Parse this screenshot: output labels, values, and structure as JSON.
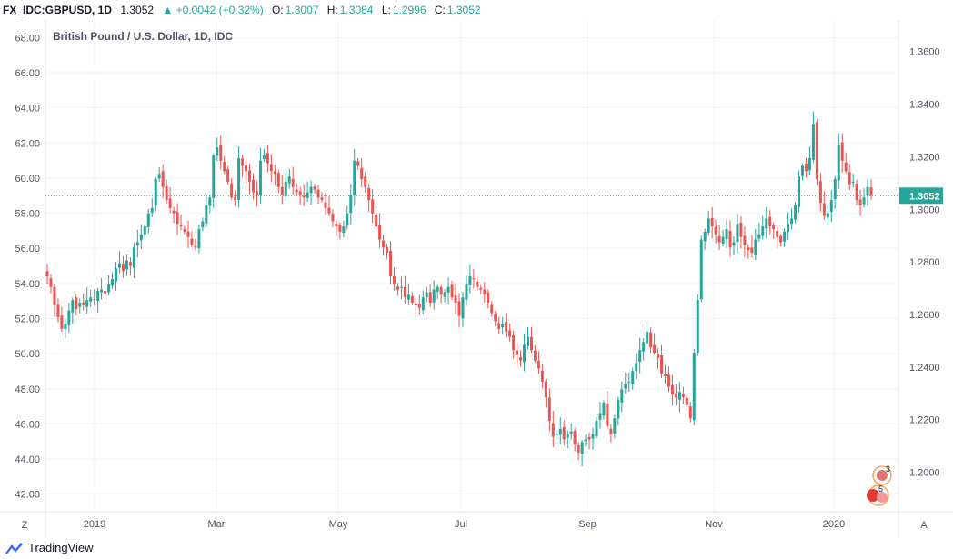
{
  "header": {
    "symbol": "FX_IDC:GBPUSD, 1D",
    "last": "1.3052",
    "change": "▲ +0.0042 (+0.32%)",
    "open_label": "O:",
    "open": "1.3007",
    "high_label": "H:",
    "high": "1.3084",
    "low_label": "L:",
    "low": "1.2996",
    "close_label": "C:",
    "close": "1.3052"
  },
  "legend": {
    "title": "British Pound / U.S. Dollar, 1D, IDC"
  },
  "axis_buttons": {
    "left": "Z",
    "right": "A"
  },
  "event_badges": [
    {
      "count": "3"
    },
    {
      "count": "5"
    }
  ],
  "footer": {
    "brand": "TradingView"
  },
  "colors": {
    "up": "#26a69a",
    "down": "#ef5350",
    "price_line": "#26a69a",
    "grid": "#f0f3fa"
  },
  "chart_data": {
    "type": "candlestick",
    "title": "British Pound / U.S. Dollar, 1D, IDC",
    "left_axis": {
      "ticks": [
        "42.00",
        "44.00",
        "46.00",
        "48.00",
        "50.00",
        "52.00",
        "54.00",
        "56.00",
        "58.00",
        "60.00",
        "62.00",
        "64.00",
        "66.00",
        "68.00"
      ],
      "ylim": [
        41,
        69
      ]
    },
    "right_axis": {
      "ticks": [
        "1.2000",
        "1.2200",
        "1.2400",
        "1.2600",
        "1.2800",
        "1.3000",
        "1.3200",
        "1.3400",
        "1.3600"
      ],
      "ylim": [
        1.185,
        1.372
      ]
    },
    "time_ticks": [
      "2019",
      "Mar",
      "May",
      "Jul",
      "Sep",
      "Nov",
      "2020"
    ],
    "price_line": {
      "value": 1.3052,
      "label": "1.3052"
    },
    "grid": true,
    "close_series": [
      1.2745,
      1.2705,
      1.2635,
      1.259,
      1.2545,
      1.2565,
      1.2615,
      1.2655,
      1.262,
      1.2645,
      1.2635,
      1.2655,
      1.2665,
      1.2655,
      1.269,
      1.2695,
      1.268,
      1.2715,
      1.2735,
      1.2775,
      1.2795,
      1.2765,
      1.2805,
      1.2785,
      1.2855,
      1.2875,
      1.2905,
      1.2935,
      1.2985,
      1.3005,
      1.3115,
      1.3135,
      1.3085,
      1.3035,
      1.3005,
      1.2985,
      1.2945,
      1.2935,
      1.2915,
      1.2895,
      1.2865,
      1.2855,
      1.2925,
      1.2955,
      1.3015,
      1.3045,
      1.3205,
      1.3235,
      1.3185,
      1.3145,
      1.3105,
      1.3045,
      1.3035,
      1.3195,
      1.3165,
      1.3145,
      1.3105,
      1.3065,
      1.3055,
      1.3185,
      1.3205,
      1.3175,
      1.3145,
      1.3135,
      1.3085,
      1.3055,
      1.3105,
      1.3125,
      1.3085,
      1.3065,
      1.3055,
      1.3045,
      1.3065,
      1.3085,
      1.3075,
      1.3045,
      1.3035,
      1.3005,
      1.2985,
      1.2955,
      1.2935,
      1.2915,
      1.2935,
      1.2985,
      1.3055,
      1.3185,
      1.3165,
      1.3115,
      1.3085,
      1.3035,
      1.2985,
      1.2935,
      1.2885,
      1.2855,
      1.2835,
      1.2745,
      1.2715,
      1.2695,
      1.2705,
      1.2665,
      1.2675,
      1.2645,
      1.2635,
      1.2625,
      1.2665,
      1.2685,
      1.2645,
      1.2695,
      1.2705,
      1.2675,
      1.2685,
      1.2705,
      1.2665,
      1.2645,
      1.2595,
      1.2665,
      1.2715,
      1.2745,
      1.2735,
      1.2705,
      1.2695,
      1.2675,
      1.2645,
      1.2605,
      1.2575,
      1.2545,
      1.2565,
      1.2535,
      1.2515,
      1.2465,
      1.2445,
      1.2425,
      1.2485,
      1.2515,
      1.2465,
      1.2425,
      1.2395,
      1.2345,
      1.2285,
      1.2195,
      1.2135,
      1.2145,
      1.2165,
      1.2125,
      1.2145,
      1.2155,
      1.2105,
      1.2075,
      1.2115,
      1.2125,
      1.2125,
      1.2145,
      1.2195,
      1.2225,
      1.2265,
      1.2175,
      1.2145,
      1.2205,
      1.2275,
      1.2315,
      1.2335,
      1.2345,
      1.2385,
      1.2415,
      1.2465,
      1.2495,
      1.2535,
      1.2475,
      1.2455,
      1.2435,
      1.2375,
      1.2365,
      1.2325,
      1.2295,
      1.2285,
      1.2305,
      1.2285,
      1.2255,
      1.2205,
      1.2455,
      1.2655,
      1.2885,
      1.2915,
      1.2965,
      1.2935,
      1.2905,
      1.2875,
      1.2895,
      1.2925,
      1.2855,
      1.2875,
      1.2945,
      1.2895,
      1.2865,
      1.2845,
      1.2835,
      1.2885,
      1.2905,
      1.2935,
      1.2965,
      1.2935,
      1.2925,
      1.2895,
      1.2875,
      1.2915,
      1.2945,
      1.2965,
      1.3015,
      1.3125,
      1.3165,
      1.3145,
      1.3195,
      1.3325,
      1.3115,
      1.3025,
      1.2975,
      1.2985,
      1.3035,
      1.3115,
      1.3245,
      1.3185,
      1.3145,
      1.3095,
      1.3105,
      1.3035,
      1.3015,
      1.3045,
      1.3085,
      1.3052
    ]
  }
}
